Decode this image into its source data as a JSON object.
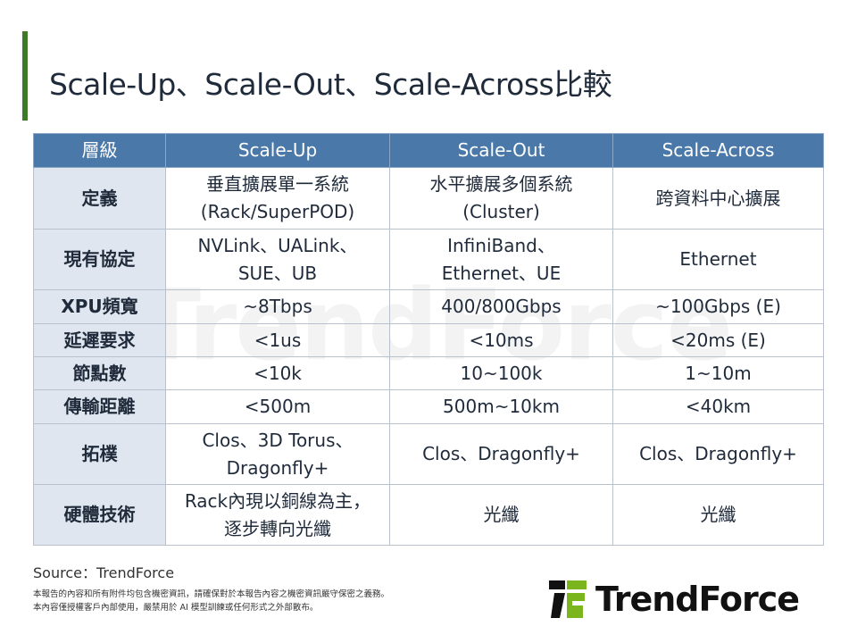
{
  "title": "Scale-Up、Scale-Out、Scale-Across比較",
  "table": {
    "headers": [
      "層級",
      "Scale-Up",
      "Scale-Out",
      "Scale-Across"
    ],
    "rows": [
      {
        "label": "定義",
        "cells": [
          [
            "垂直擴展單一系統",
            "(Rack/SuperPOD)"
          ],
          [
            "水平擴展多個系統",
            "(Cluster)"
          ],
          [
            "跨資料中心擴展"
          ]
        ]
      },
      {
        "label": "現有協定",
        "cells": [
          [
            "NVLink、UALink、",
            "SUE、UB"
          ],
          [
            "InfiniBand、",
            "Ethernet、UE"
          ],
          [
            "Ethernet"
          ]
        ]
      },
      {
        "label": "XPU頻寬",
        "cells": [
          [
            "~8Tbps"
          ],
          [
            "400/800Gbps"
          ],
          [
            "~100Gbps (E)"
          ]
        ]
      },
      {
        "label": "延遲要求",
        "cells": [
          [
            "<1us"
          ],
          [
            "<10ms"
          ],
          [
            "<20ms (E)"
          ]
        ]
      },
      {
        "label": "節點數",
        "cells": [
          [
            "<10k"
          ],
          [
            "10~100k"
          ],
          [
            "1~10m"
          ]
        ]
      },
      {
        "label": "傳輸距離",
        "cells": [
          [
            "<500m"
          ],
          [
            "500m~10km"
          ],
          [
            "<40km"
          ]
        ]
      },
      {
        "label": "拓樸",
        "cells": [
          [
            "Clos、3D Torus、",
            "Dragonfly+"
          ],
          [
            "Clos、Dragonfly+"
          ],
          [
            "Clos、Dragonfly+"
          ]
        ]
      },
      {
        "label": "硬體技術",
        "cells": [
          [
            "Rack內現以銅線為主，",
            "逐步轉向光纖"
          ],
          [
            "光纖"
          ],
          [
            "光纖"
          ]
        ]
      }
    ]
  },
  "watermark": "TrendForce",
  "source": "Source：TrendForce",
  "disclaimer": [
    "本報告的內容和所有附件均包含機密資訊，請確保對於本報告內容之機密資訊嚴守保密之義務。",
    "本內容僅授權客戶內部使用，嚴禁用於 AI 模型訓練或任何形式之外部散布。"
  ],
  "logo": {
    "text": "TrendForce",
    "colors": {
      "black": "#111111",
      "green": "#7ab51d"
    }
  },
  "colors": {
    "accent": "#3e7a27",
    "header": "#4a78a8",
    "row_header": "#dfe6ef"
  }
}
